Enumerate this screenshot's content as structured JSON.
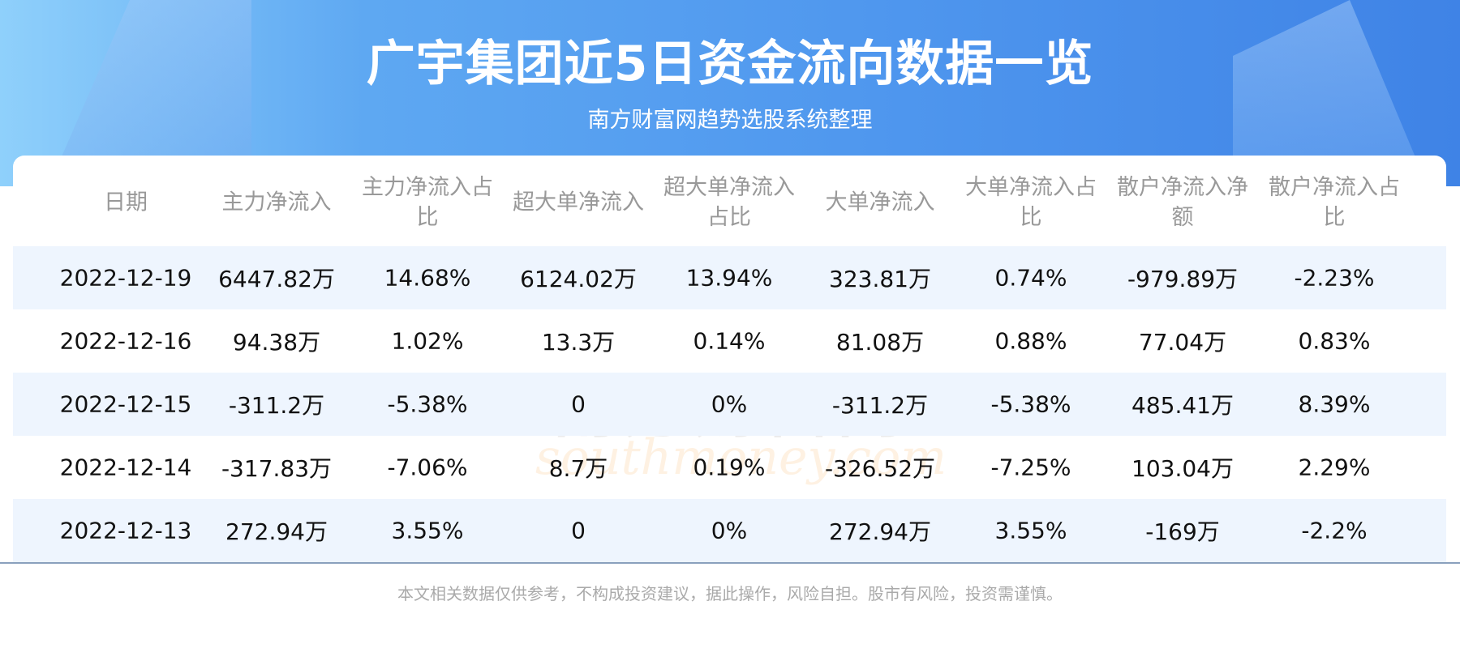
{
  "header": {
    "title": "广宇集团近5日资金流向数据一览",
    "subtitle": "南方财富网趋势选股系统整理"
  },
  "colors": {
    "header_blue": "#4f97ee",
    "alt_row": "#eef5fe",
    "divider": "#8aa0bd"
  },
  "watermark": {
    "cn": "南方财富网",
    "en": "southmoney.com"
  },
  "table": {
    "columns": [
      "日期",
      "主力净流入",
      "主力净流入占比",
      "超大单净流入",
      "超大单净流入占比",
      "大单净流入",
      "大单净流入占比",
      "散户净流入净额",
      "散户净流入占比"
    ],
    "rows": [
      [
        "2022-12-19",
        "6447.82万",
        "14.68%",
        "6124.02万",
        "13.94%",
        "323.81万",
        "0.74%",
        "-979.89万",
        "-2.23%"
      ],
      [
        "2022-12-16",
        "94.38万",
        "1.02%",
        "13.3万",
        "0.14%",
        "81.08万",
        "0.88%",
        "77.04万",
        "0.83%"
      ],
      [
        "2022-12-15",
        "-311.2万",
        "-5.38%",
        "0",
        "0%",
        "-311.2万",
        "-5.38%",
        "485.41万",
        "8.39%"
      ],
      [
        "2022-12-14",
        "-317.83万",
        "-7.06%",
        "8.7万",
        "0.19%",
        "-326.52万",
        "-7.25%",
        "103.04万",
        "2.29%"
      ],
      [
        "2022-12-13",
        "272.94万",
        "3.55%",
        "0",
        "0%",
        "272.94万",
        "3.55%",
        "-169万",
        "-2.2%"
      ]
    ]
  },
  "footer": {
    "disclaimer": "本文相关数据仅供参考，不构成投资建议，据此操作，风险自担。股市有风险，投资需谨慎。"
  }
}
